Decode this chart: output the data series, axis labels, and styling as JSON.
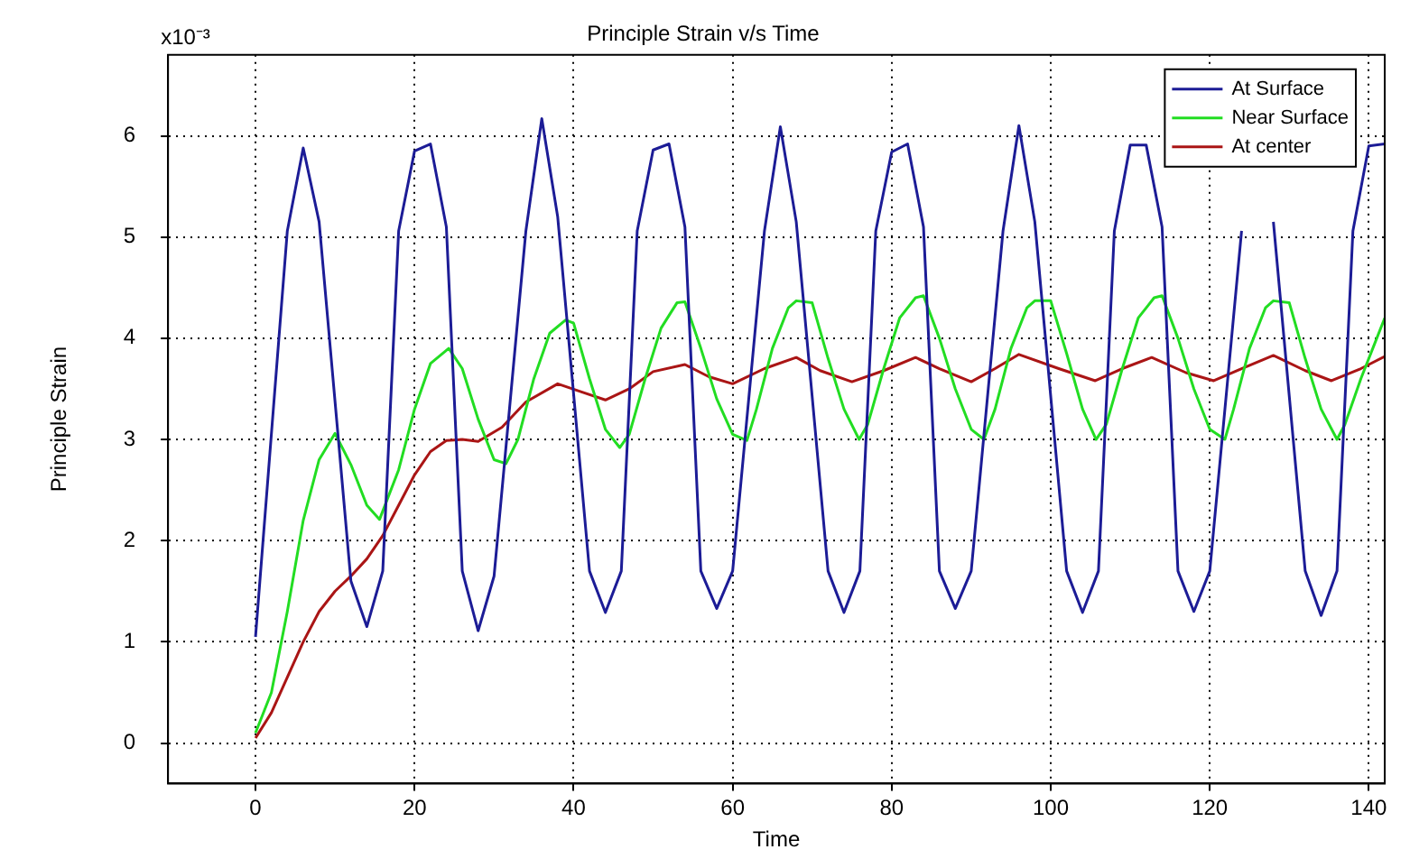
{
  "chart_data": {
    "type": "line",
    "title": "Principle Strain v/s Time",
    "xlabel": "Time",
    "ylabel": "Principle Strain",
    "annotations": [
      "x10⁻³"
    ],
    "xlim": [
      -11,
      142
    ],
    "xticks": [
      0,
      20,
      40,
      60,
      80,
      100,
      120,
      140
    ],
    "ylim": [
      -0.4,
      6.8
    ],
    "yticks": [
      0,
      1,
      2,
      3,
      4,
      5,
      6
    ],
    "grid": true,
    "legend": "top right",
    "marker": "none",
    "line_style": "solid",
    "series": [
      {
        "name": "At Surface",
        "color": "#1c1c96",
        "x": [
          0,
          4,
          6,
          8,
          12,
          14,
          16,
          18,
          20,
          22,
          24,
          26,
          28,
          30,
          34,
          36,
          38,
          42,
          44,
          46,
          48,
          50,
          52,
          54,
          56,
          58,
          60,
          64,
          66,
          68,
          72,
          74,
          76,
          78,
          80,
          82,
          84,
          86,
          88,
          90,
          94,
          96,
          98,
          102,
          104,
          106,
          108,
          110,
          112,
          114,
          116,
          118,
          120,
          124,
          126,
          128,
          132,
          134,
          136,
          138,
          140,
          142
        ],
        "values": [
          1.05,
          5.06,
          5.88,
          5.15,
          1.6,
          1.15,
          1.7,
          5.06,
          5.85,
          5.92,
          5.1,
          1.7,
          1.11,
          1.65,
          5.06,
          6.17,
          5.2,
          1.7,
          1.29,
          1.7,
          5.06,
          5.86,
          5.92,
          5.1,
          1.7,
          1.33,
          1.7,
          5.06,
          6.09,
          5.15,
          1.7,
          1.29,
          1.7,
          5.06,
          5.84,
          5.92,
          5.1,
          1.7,
          1.33,
          1.7,
          5.06,
          6.1,
          5.15,
          1.7,
          1.29,
          1.7,
          5.06,
          5.91,
          5.91,
          5.1,
          1.7,
          1.3,
          1.7,
          5.06,
          null,
          5.15,
          1.7,
          1.26,
          1.7,
          5.06,
          5.9,
          5.92
        ]
      },
      {
        "name": "Near Surface",
        "color": "#22dd22",
        "x": [
          0,
          2,
          4,
          6,
          8,
          10,
          12,
          14,
          15.6,
          18,
          20,
          22,
          24.3,
          26,
          28,
          30,
          31.5,
          33,
          35,
          37,
          39,
          40,
          42,
          44,
          45.8,
          47,
          49,
          51,
          53,
          54,
          56,
          58,
          60,
          61.8,
          63,
          65,
          67,
          68,
          70,
          72,
          74,
          75.9,
          77,
          79,
          81,
          83,
          84,
          86,
          88,
          90,
          91.6,
          93,
          95,
          97,
          98,
          100,
          102,
          104,
          105.7,
          107,
          109,
          111,
          113,
          114,
          116,
          118,
          120,
          121.9,
          123,
          125,
          127,
          128,
          130,
          132,
          134,
          136,
          137,
          139,
          141,
          142
        ],
        "values": [
          0.1,
          0.5,
          1.3,
          2.2,
          2.8,
          3.06,
          2.75,
          2.35,
          2.21,
          2.7,
          3.3,
          3.75,
          3.9,
          3.7,
          3.2,
          2.8,
          2.76,
          3.0,
          3.6,
          4.05,
          4.18,
          4.15,
          3.6,
          3.1,
          2.92,
          3.05,
          3.6,
          4.1,
          4.35,
          4.36,
          3.9,
          3.4,
          3.05,
          2.99,
          3.3,
          3.9,
          4.3,
          4.37,
          4.35,
          3.8,
          3.3,
          3.0,
          3.15,
          3.7,
          4.2,
          4.4,
          4.42,
          4.0,
          3.5,
          3.1,
          3.0,
          3.3,
          3.9,
          4.3,
          4.37,
          4.37,
          3.85,
          3.3,
          3.0,
          3.15,
          3.7,
          4.2,
          4.4,
          4.42,
          4.0,
          3.5,
          3.1,
          3.0,
          3.3,
          3.9,
          4.3,
          4.37,
          4.35,
          3.8,
          3.3,
          3.0,
          3.15,
          3.6,
          4.0,
          4.2
        ]
      },
      {
        "name": "At center",
        "color": "#aa1515",
        "x": [
          0,
          2,
          4,
          6,
          8,
          10,
          12,
          14,
          16,
          18,
          20,
          22,
          24,
          26,
          28,
          31,
          34,
          38,
          41,
          44,
          47,
          50,
          54,
          57,
          60,
          64,
          68,
          71,
          75,
          79,
          83,
          86,
          90,
          93,
          96,
          101,
          105.6,
          109,
          112.7,
          117,
          120.5,
          124,
          128,
          132,
          135.3,
          139,
          142
        ],
        "values": [
          0.05,
          0.3,
          0.65,
          1.0,
          1.3,
          1.5,
          1.65,
          1.82,
          2.05,
          2.35,
          2.65,
          2.88,
          2.99,
          3.0,
          2.98,
          3.12,
          3.37,
          3.55,
          3.47,
          3.39,
          3.5,
          3.67,
          3.74,
          3.62,
          3.55,
          3.7,
          3.81,
          3.68,
          3.57,
          3.68,
          3.81,
          3.7,
          3.57,
          3.7,
          3.84,
          3.7,
          3.58,
          3.7,
          3.81,
          3.66,
          3.58,
          3.7,
          3.83,
          3.68,
          3.58,
          3.7,
          3.82
        ]
      }
    ]
  }
}
